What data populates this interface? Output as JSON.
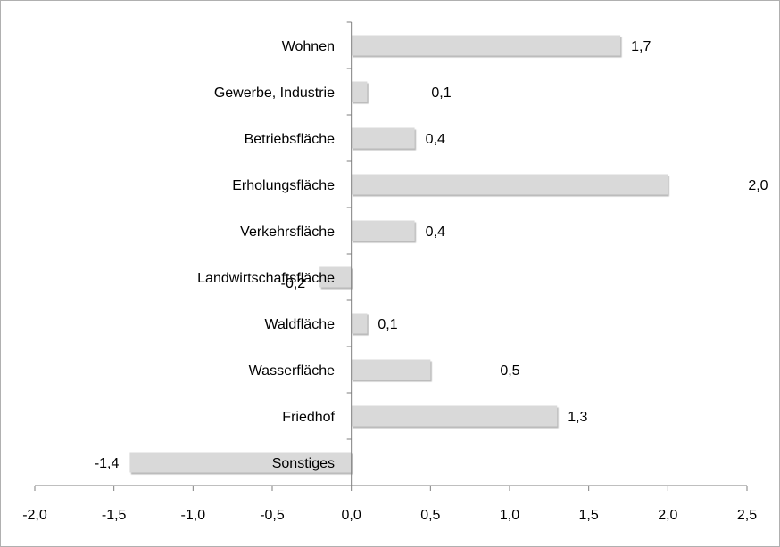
{
  "chart_data": {
    "type": "bar",
    "orientation": "horizontal",
    "title": "",
    "xlabel": "",
    "ylabel": "",
    "categories": [
      "Wohnen",
      "Gewerbe, Industrie",
      "Betriebsfläche",
      "Erholungsfläche",
      "Verkehrsfläche",
      "Landwirtschaftsfläche",
      "Waldfläche",
      "Wasserfläche",
      "Friedhof",
      "Sonstiges"
    ],
    "values": [
      1.7,
      0.1,
      0.4,
      2.0,
      0.4,
      -0.2,
      0.1,
      0.5,
      1.3,
      -1.4
    ],
    "value_labels": [
      "1,7",
      "0,1",
      "0,4",
      "2,0",
      "0,4",
      "-0,2",
      "0,1",
      "0,5",
      "1,3",
      "-1,4"
    ],
    "xlim": [
      -2.0,
      2.5
    ],
    "x_ticks": [
      -2.0,
      -1.5,
      -1.0,
      -0.5,
      0.0,
      0.5,
      1.0,
      1.5,
      2.0,
      2.5
    ],
    "x_tick_labels": [
      "-2,0",
      "-1,5",
      "-1,0",
      "-0,5",
      "0,0",
      "0,5",
      "1,0",
      "1,5",
      "2,0",
      "2,5"
    ],
    "grid": false,
    "legend": "none",
    "colors": {
      "bar": "#d9d9d9",
      "bar_shadow": "#a8a8a8",
      "axis": "#7f7f7f",
      "text": "#000000",
      "frame": "#b0b0b0"
    }
  }
}
